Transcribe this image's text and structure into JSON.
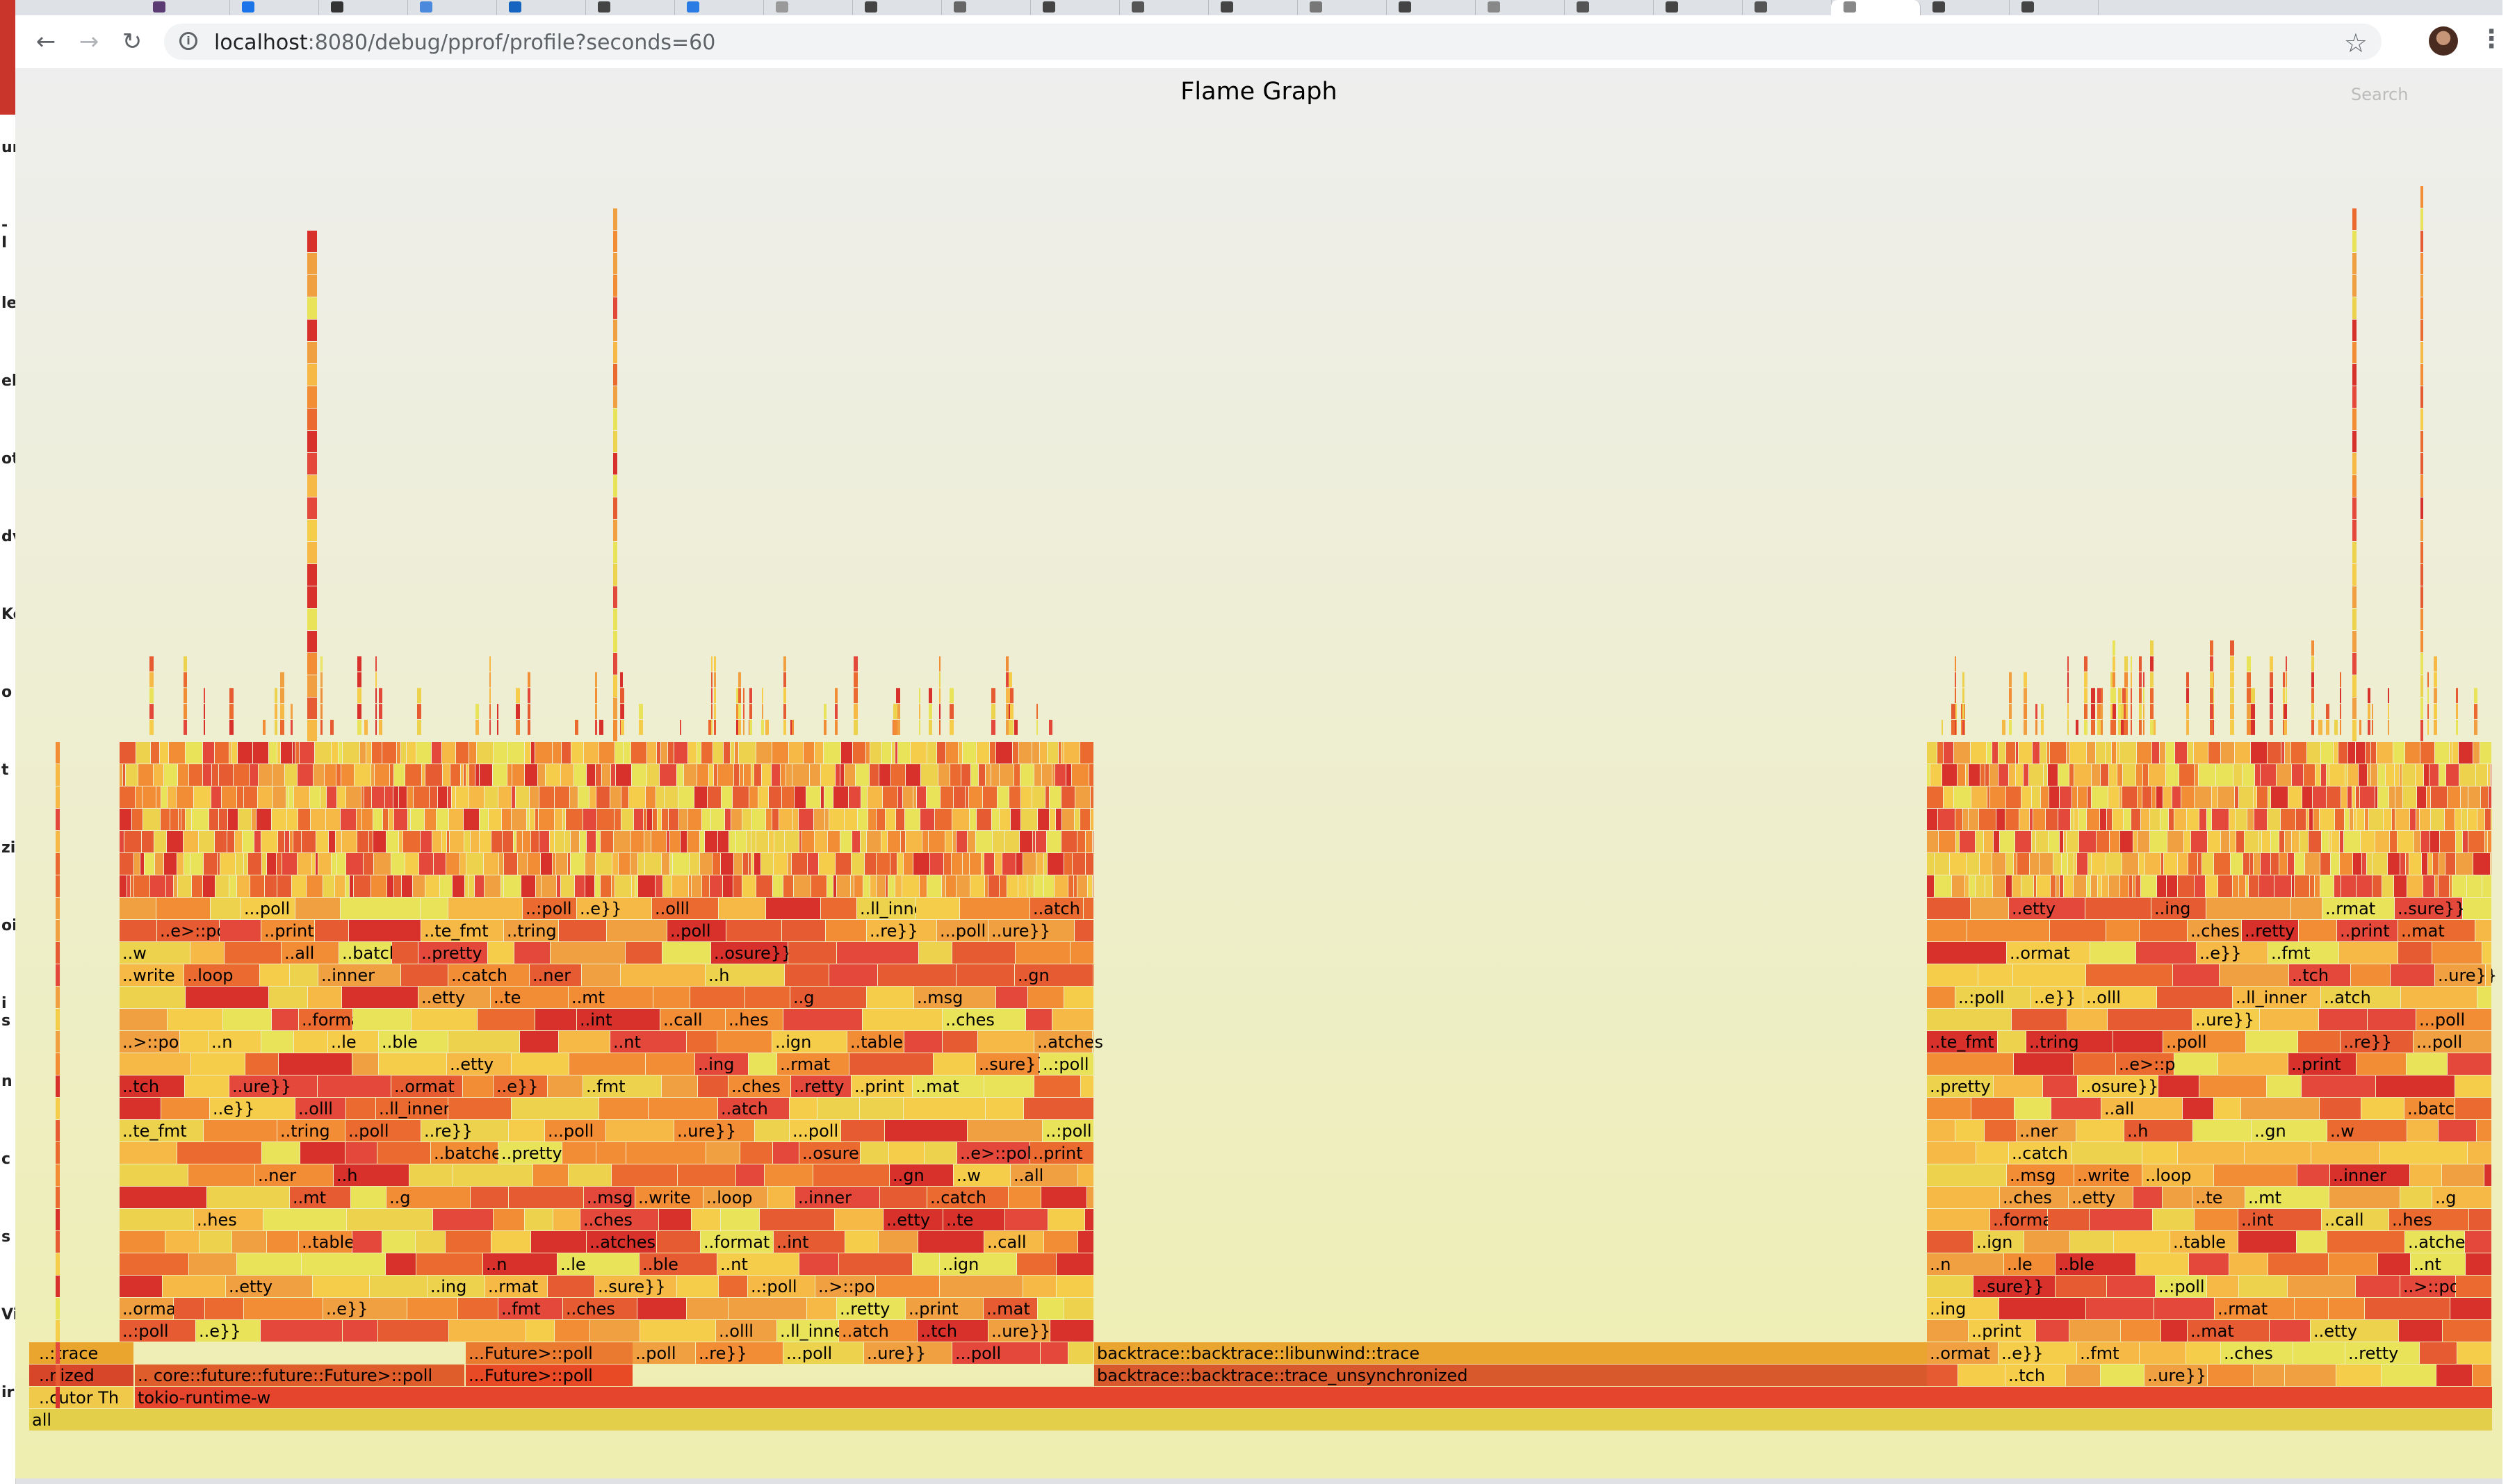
{
  "browser": {
    "url_host": "localhost",
    "url_path": ":8080/debug/pprof/profile?seconds=60",
    "left_fragments": [
      "ur",
      "- I",
      "le",
      "el",
      "ot",
      "dv",
      "Ke",
      "o",
      "t",
      "zi",
      "oi",
      "i s",
      "n",
      "c",
      "s",
      "Vi",
      "ir"
    ]
  },
  "page": {
    "title": "Flame Graph",
    "search_label": "Search"
  },
  "flame": {
    "base_rows": [
      {
        "label": "all",
        "color": "#e3cf49"
      },
      {
        "label": "tokio-runtime-w",
        "color": "#e6452d"
      }
    ],
    "left_labels": [
      {
        "row": 2,
        "text": "..cutor Th",
        "color": "#f0c94a"
      },
      {
        "row": 3,
        "text": "..nized",
        "color": "#d8462a"
      },
      {
        "row": 4,
        "text": "..:trace",
        "color": "#eaa52f"
      }
    ],
    "wide_labels": [
      {
        "row": 3,
        "text": ".. core::future::future::Future>::poll",
        "color": "#df5c2b"
      },
      {
        "row": 3,
        "text": "...Future>::poll",
        "color": "#e84a26"
      },
      {
        "row": 4,
        "text": "...Future>::poll",
        "color": "#ea7a2f"
      },
      {
        "row": 3,
        "text": "backtrace::backtrace::trace_unsynchronized",
        "color": "#d85a2c"
      },
      {
        "row": 4,
        "text": "backtrace::backtrace::libunwind::trace",
        "color": "#e9a52f"
      }
    ],
    "tower_labels": [
      "..poll",
      "..re}}",
      "...poll",
      "..ure}}",
      "...poll",
      "..:poll",
      "..e}}",
      "..olll",
      "..ll_inner",
      "..atch",
      "..tch",
      "..ure}}",
      "..ormat",
      "..e}}",
      "..fmt",
      "..ches",
      "..retty",
      "..print",
      "..mat",
      "..etty",
      "..ing",
      "..rmat",
      "..sure}}",
      "..:poll",
      "..>::poll",
      "..n",
      "..le",
      "..ble",
      "..nt",
      "..ign",
      "..table",
      "..atches",
      "..format",
      "..int",
      "..call",
      "..hes",
      "..ches",
      "..etty",
      "..te",
      "..mt",
      "..g",
      "..msg",
      "..write",
      "..loop",
      "..inner",
      "..catch",
      "..ner",
      "..h",
      "..gn",
      "..w",
      "..all",
      "..batches",
      "..pretty",
      "..osure}}",
      "..e>::poll",
      "..print",
      "..te_fmt",
      "..tring"
    ]
  },
  "chart_data": {
    "type": "flame",
    "title": "Flame Graph",
    "root": "all",
    "thread": "tokio-runtime-w",
    "stacks": [
      {
        "name": "..cutor Th",
        "share": 0.045
      },
      {
        "name": "tokio-runtime-w",
        "share": 0.955
      },
      {
        "name": ".. core::future::future::Future>::poll",
        "share": 0.39
      },
      {
        "name": "backtrace::backtrace::trace_unsynchronized",
        "share": 0.33
      },
      {
        "name": "backtrace::backtrace::libunwind::trace",
        "share": 0.33
      }
    ]
  },
  "colors": {
    "palette": [
      "#e3483a",
      "#eb6a2f",
      "#f0a040",
      "#f6cd4a",
      "#e9e35a",
      "#d8312b",
      "#f28c35",
      "#e75b32",
      "#f6b945",
      "#edd24e"
    ]
  }
}
